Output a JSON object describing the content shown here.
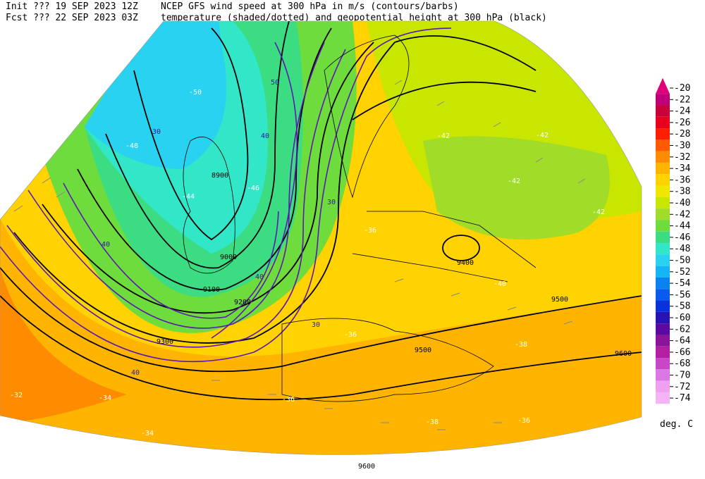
{
  "header": {
    "init": "Init  ??? 19 SEP 2023 12Z",
    "fcst": "Fcst ??? 22 SEP 2023 03Z",
    "title1": "NCEP GFS wind speed at 300 hPa in m/s (contours/barbs)",
    "title2": "temperature (shaded/dotted) and geopotential height at 300 hPa (black)"
  },
  "colorbar": {
    "unit": "deg. C",
    "ticks": [
      -20,
      -22,
      -24,
      -26,
      -28,
      -30,
      -32,
      -34,
      -36,
      -38,
      -40,
      -42,
      -44,
      -46,
      -48,
      -50,
      -52,
      -54,
      -56,
      -58,
      -60,
      -62,
      -64,
      -66,
      -68,
      -70,
      -72,
      -74
    ],
    "colors": [
      "#e0007a",
      "#c00078",
      "#c8003c",
      "#e8001e",
      "#ff1e00",
      "#ff5a00",
      "#ff8c00",
      "#ffb400",
      "#ffd200",
      "#f0e600",
      "#c8e600",
      "#a0dc28",
      "#6edc3c",
      "#3cdc82",
      "#32e6c8",
      "#28d2f0",
      "#14b4f5",
      "#0a82f0",
      "#0a5af0",
      "#0a32dc",
      "#2814b4",
      "#5a0aa0",
      "#8c149b",
      "#b41ea0",
      "#c846c8",
      "#dc78e6",
      "#f0a0f0",
      "#f5b4f5"
    ]
  },
  "map": {
    "labels": [
      "9600",
      "9500",
      "9500",
      "9400",
      "9300",
      "9200",
      "9100",
      "9000",
      "8900",
      "9600",
      "-50",
      "-48",
      "-46",
      "-44",
      "-42",
      "-42",
      "-42",
      "-42",
      "-40",
      "-38",
      "-36",
      "-36",
      "-34",
      "-34",
      "-32",
      "-36",
      "-38",
      "-36",
      "40",
      "50",
      "30",
      "40",
      "30",
      "40",
      "40",
      "30"
    ]
  }
}
